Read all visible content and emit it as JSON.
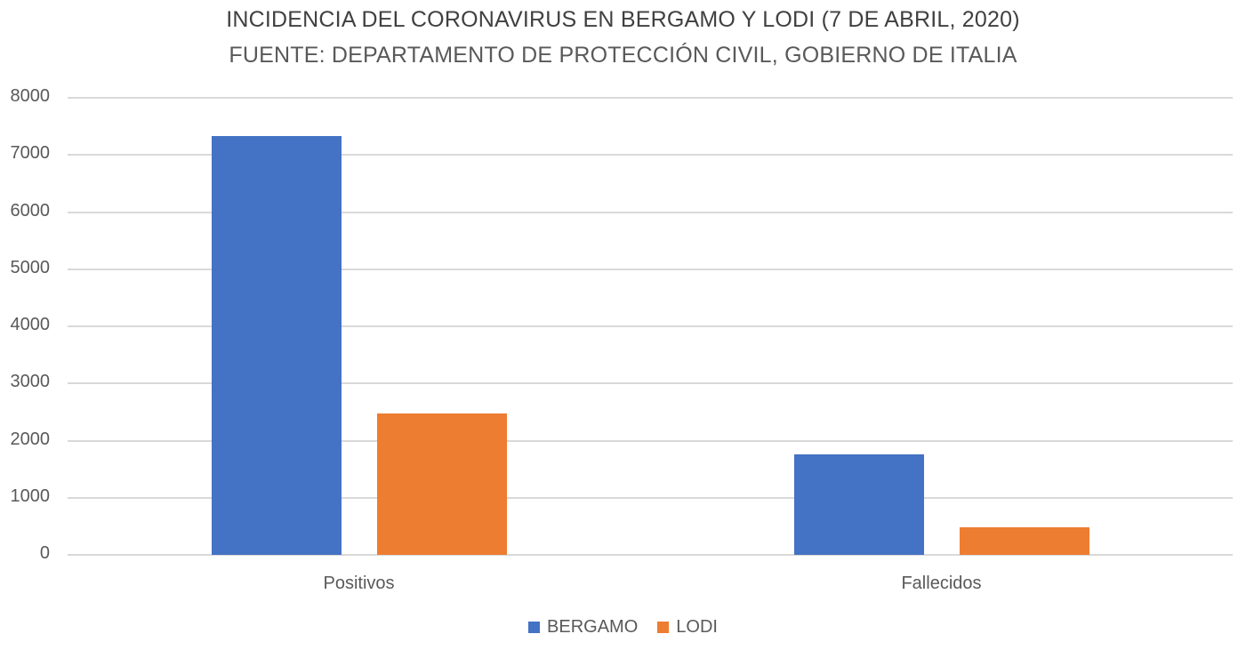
{
  "chart_data": {
    "type": "bar",
    "title": "INCIDENCIA DEL CORONAVIRUS EN BERGAMO Y LODI (7 DE ABRIL, 2020)",
    "subtitle": "FUENTE: DEPARTAMENTO DE PROTECCIÓN CIVIL, GOBIERNO DE ITALIA",
    "categories": [
      "Positivos",
      "Fallecidos"
    ],
    "series": [
      {
        "name": "BERGAMO",
        "color": "#4472c4",
        "values": [
          7333,
          1759
        ]
      },
      {
        "name": "LODI",
        "color": "#ed7d31",
        "values": [
          2477,
          482
        ]
      }
    ],
    "xlabel": "",
    "ylabel": "",
    "ylim": [
      0,
      8000
    ],
    "yticks": [
      "0",
      "1000",
      "2000",
      "3000",
      "4000",
      "5000",
      "6000",
      "7000",
      "8000"
    ],
    "grid": true,
    "legend_position": "bottom"
  }
}
